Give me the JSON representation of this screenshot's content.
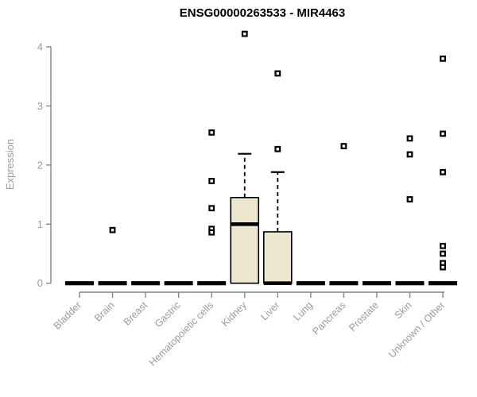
{
  "chart_data": {
    "type": "box",
    "title": "ENSG00000263533 - MIR4463",
    "ylabel": "Expression",
    "xlabel": "",
    "ylim": [
      0,
      4
    ],
    "yticks": [
      0,
      1,
      2,
      3,
      4
    ],
    "grid": false,
    "legend": "none",
    "categories": [
      "Bladder",
      "Brain",
      "Breast",
      "Gastric",
      "Hematopoietic cells",
      "Kidney",
      "Liver",
      "Lung",
      "Pancreas",
      "Prostate",
      "Skin",
      "Unknown / Other"
    ],
    "boxes": [
      {
        "category": "Bladder",
        "q1": 0,
        "median": 0,
        "q3": 0,
        "whisker_low": 0,
        "whisker_high": 0,
        "outliers": []
      },
      {
        "category": "Brain",
        "q1": 0,
        "median": 0,
        "q3": 0,
        "whisker_low": 0,
        "whisker_high": 0,
        "outliers": [
          0.9
        ]
      },
      {
        "category": "Breast",
        "q1": 0,
        "median": 0,
        "q3": 0,
        "whisker_low": 0,
        "whisker_high": 0,
        "outliers": []
      },
      {
        "category": "Gastric",
        "q1": 0,
        "median": 0,
        "q3": 0,
        "whisker_low": 0,
        "whisker_high": 0,
        "outliers": []
      },
      {
        "category": "Hematopoietic cells",
        "q1": 0,
        "median": 0,
        "q3": 0,
        "whisker_low": 0,
        "whisker_high": 0,
        "outliers": [
          2.55,
          1.73,
          1.27,
          0.92,
          0.86
        ]
      },
      {
        "category": "Kidney",
        "q1": 0,
        "median": 1.0,
        "q3": 1.45,
        "whisker_low": 0,
        "whisker_high": 2.19,
        "outliers": [
          4.22
        ]
      },
      {
        "category": "Liver",
        "q1": 0,
        "median": 0,
        "q3": 0.87,
        "whisker_low": 0,
        "whisker_high": 1.88,
        "outliers": [
          3.55,
          2.27
        ]
      },
      {
        "category": "Lung",
        "q1": 0,
        "median": 0,
        "q3": 0,
        "whisker_low": 0,
        "whisker_high": 0,
        "outliers": []
      },
      {
        "category": "Pancreas",
        "q1": 0,
        "median": 0,
        "q3": 0,
        "whisker_low": 0,
        "whisker_high": 0,
        "outliers": [
          2.32
        ]
      },
      {
        "category": "Prostate",
        "q1": 0,
        "median": 0,
        "q3": 0,
        "whisker_low": 0,
        "whisker_high": 0,
        "outliers": []
      },
      {
        "category": "Skin",
        "q1": 0,
        "median": 0,
        "q3": 0,
        "whisker_low": 0,
        "whisker_high": 0,
        "outliers": [
          2.45,
          2.18,
          1.42
        ]
      },
      {
        "category": "Unknown / Other",
        "q1": 0,
        "median": 0,
        "q3": 0,
        "whisker_low": 0,
        "whisker_high": 0,
        "outliers": [
          3.8,
          2.53,
          1.88,
          0.63,
          0.5,
          0.34,
          0.27
        ]
      }
    ],
    "colors": {
      "box_fill": "#ECE7CE",
      "box_border": "#000000",
      "median": "#000000",
      "whisker": "#000000",
      "outlier": "#000000",
      "axis": "#848484",
      "tick_text": "#9a9a9a",
      "title_text": "#000000",
      "background": "#ffffff"
    }
  }
}
